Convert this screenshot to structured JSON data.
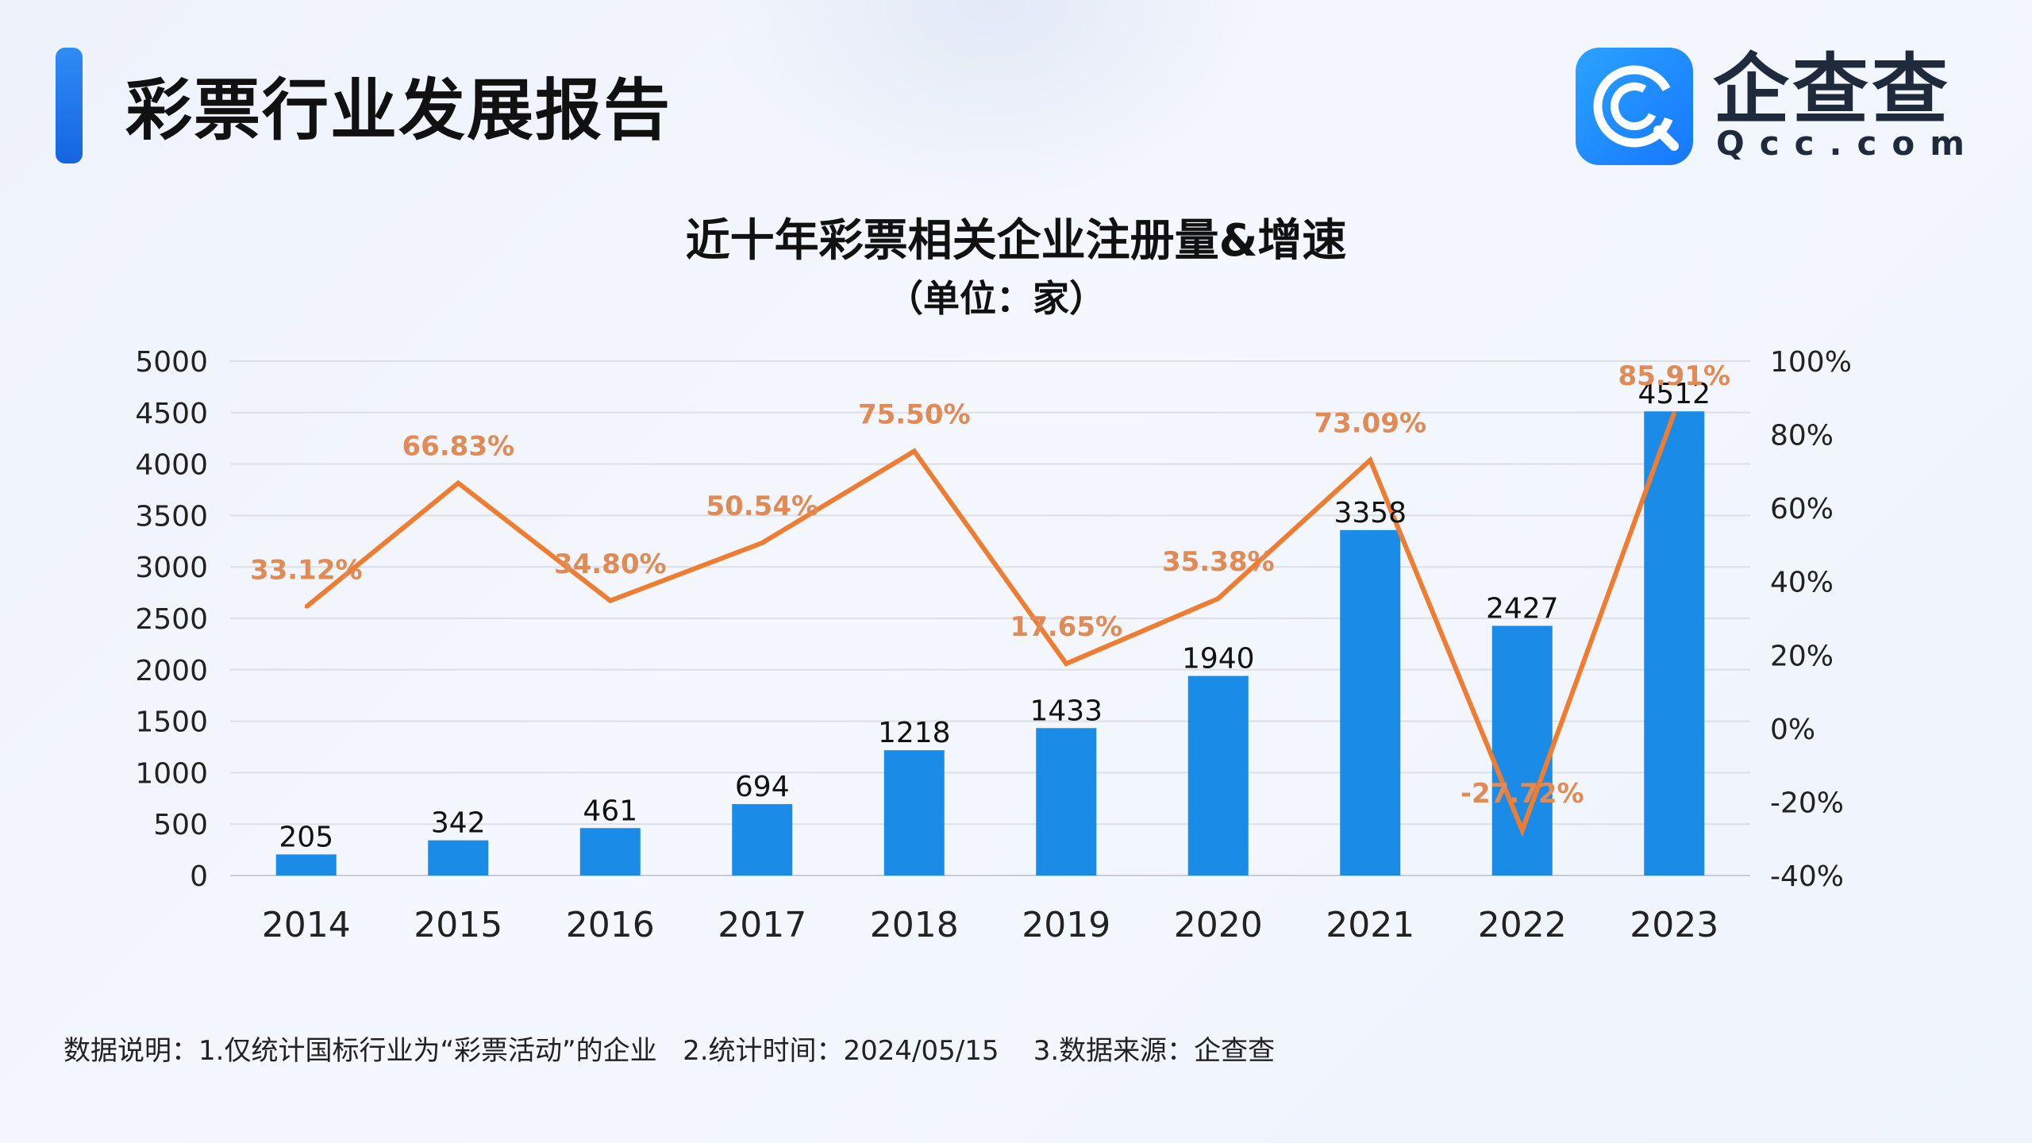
{
  "header": {
    "title": "彩票行业发展报告",
    "logo_name": "企查查",
    "logo_domain": "Qcc.com"
  },
  "chart_data": {
    "type": "bar",
    "title": "近十年彩票相关企业注册量&增速",
    "subtitle": "（单位：家）",
    "categories": [
      "2014",
      "2015",
      "2016",
      "2017",
      "2018",
      "2019",
      "2020",
      "2021",
      "2022",
      "2023"
    ],
    "series": [
      {
        "type": "bar",
        "axis": "left",
        "color": "#1a8ce8",
        "value_labels": [
          "205",
          "342",
          "461",
          "694",
          "1218",
          "1433",
          "1940",
          "3358",
          "2427",
          "4512"
        ],
        "values": [
          205,
          342,
          461,
          694,
          1218,
          1433,
          1940,
          3358,
          2427,
          4512
        ]
      },
      {
        "type": "line",
        "axis": "right",
        "color": "#ee7d31",
        "value_labels": [
          "33.12%",
          "66.83%",
          "34.80%",
          "50.54%",
          "75.50%",
          "17.65%",
          "35.38%",
          "73.09%",
          "-27.72%",
          "85.91%"
        ],
        "values": [
          33.12,
          66.83,
          34.8,
          50.54,
          75.5,
          17.65,
          35.38,
          73.09,
          -27.72,
          85.91
        ]
      }
    ],
    "y_left": {
      "min": 0,
      "max": 5000,
      "step": 500,
      "ticks": [
        "0",
        "500",
        "1000",
        "1500",
        "2000",
        "2500",
        "3000",
        "3500",
        "4000",
        "4500",
        "5000"
      ]
    },
    "y_right": {
      "min": -40,
      "max": 100,
      "step": 20,
      "ticks": [
        "-40%",
        "-20%",
        "0%",
        "20%",
        "40%",
        "60%",
        "80%",
        "100%"
      ]
    },
    "grid": true
  },
  "footnote": "数据说明：1.仅统计国标行业为“彩票活动”的企业   2.统计时间：2024/05/15    3.数据来源：企查查"
}
